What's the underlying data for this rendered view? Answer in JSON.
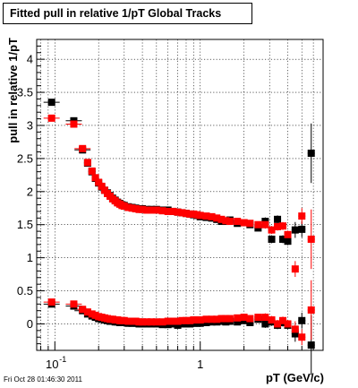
{
  "chart_data": {
    "type": "scatter",
    "title": "Fitted pull in relative 1/pT  Global Tracks",
    "xlabel": "pT (GeV/c)",
    "ylabel": "pull in relative 1/pT",
    "xscale": "log",
    "xlim": [
      0.075,
      7.0
    ],
    "ylim": [
      -0.4,
      4.3
    ],
    "grid": true,
    "legend": "none",
    "x_tick_labels": [
      {
        "value": 0.1,
        "base": "10",
        "exp": "-1"
      },
      {
        "value": 1,
        "label": "1"
      }
    ],
    "y_ticks": [
      0,
      0.5,
      1,
      1.5,
      2,
      2.5,
      3,
      3.5,
      4
    ],
    "y_tick_labels": [
      "0",
      "0.5",
      "1",
      "1.5",
      "2",
      "2.5",
      "3",
      "3.5",
      "4"
    ],
    "colors": {
      "black": "#000000",
      "red": "#ff0000"
    },
    "series": [
      {
        "color": "#000000",
        "marker": "square",
        "points": [
          {
            "x": 0.095,
            "y": 3.35
          },
          {
            "x": 0.135,
            "y": 3.07
          },
          {
            "x": 0.155,
            "y": 2.63
          },
          {
            "x": 0.168,
            "y": 2.43
          },
          {
            "x": 0.18,
            "y": 2.3
          },
          {
            "x": 0.19,
            "y": 2.2
          },
          {
            "x": 0.2,
            "y": 2.13
          },
          {
            "x": 0.21,
            "y": 2.07
          },
          {
            "x": 0.22,
            "y": 2.02
          },
          {
            "x": 0.23,
            "y": 1.98
          },
          {
            "x": 0.24,
            "y": 1.94
          },
          {
            "x": 0.25,
            "y": 1.9
          },
          {
            "x": 0.26,
            "y": 1.87
          },
          {
            "x": 0.27,
            "y": 1.84
          },
          {
            "x": 0.28,
            "y": 1.82
          },
          {
            "x": 0.29,
            "y": 1.8
          },
          {
            "x": 0.3,
            "y": 1.79
          },
          {
            "x": 0.32,
            "y": 1.77
          },
          {
            "x": 0.34,
            "y": 1.76
          },
          {
            "x": 0.36,
            "y": 1.75
          },
          {
            "x": 0.38,
            "y": 1.74
          },
          {
            "x": 0.4,
            "y": 1.74
          },
          {
            "x": 0.43,
            "y": 1.73
          },
          {
            "x": 0.46,
            "y": 1.73
          },
          {
            "x": 0.5,
            "y": 1.73
          },
          {
            "x": 0.55,
            "y": 1.72
          },
          {
            "x": 0.6,
            "y": 1.72
          },
          {
            "x": 0.65,
            "y": 1.7
          },
          {
            "x": 0.7,
            "y": 1.69
          },
          {
            "x": 0.75,
            "y": 1.68
          },
          {
            "x": 0.8,
            "y": 1.67
          },
          {
            "x": 0.85,
            "y": 1.66
          },
          {
            "x": 0.9,
            "y": 1.65
          },
          {
            "x": 0.95,
            "y": 1.64
          },
          {
            "x": 1.0,
            "y": 1.62
          },
          {
            "x": 1.1,
            "y": 1.61
          },
          {
            "x": 1.2,
            "y": 1.6
          },
          {
            "x": 1.3,
            "y": 1.58
          },
          {
            "x": 1.4,
            "y": 1.55
          },
          {
            "x": 1.5,
            "y": 1.55
          },
          {
            "x": 1.6,
            "y": 1.57
          },
          {
            "x": 1.8,
            "y": 1.52
          },
          {
            "x": 2.0,
            "y": 1.53
          },
          {
            "x": 2.2,
            "y": 1.5
          },
          {
            "x": 2.5,
            "y": 1.45
          },
          {
            "x": 2.8,
            "y": 1.55
          },
          {
            "x": 3.1,
            "y": 1.28
          },
          {
            "x": 3.4,
            "y": 1.58
          },
          {
            "x": 3.7,
            "y": 1.28
          },
          {
            "x": 4.0,
            "y": 1.25
          },
          {
            "x": 4.5,
            "y": 1.42
          },
          {
            "x": 5.0,
            "y": 1.43
          },
          {
            "x": 5.8,
            "y": 2.58
          },
          {
            "x": 0.095,
            "y": 0.3
          },
          {
            "x": 0.135,
            "y": 0.27
          },
          {
            "x": 0.155,
            "y": 0.2
          },
          {
            "x": 0.168,
            "y": 0.15
          },
          {
            "x": 0.18,
            "y": 0.12
          },
          {
            "x": 0.19,
            "y": 0.1
          },
          {
            "x": 0.2,
            "y": 0.08
          },
          {
            "x": 0.21,
            "y": 0.07
          },
          {
            "x": 0.22,
            "y": 0.06
          },
          {
            "x": 0.23,
            "y": 0.05
          },
          {
            "x": 0.24,
            "y": 0.04
          },
          {
            "x": 0.25,
            "y": 0.04
          },
          {
            "x": 0.26,
            "y": 0.03
          },
          {
            "x": 0.27,
            "y": 0.03
          },
          {
            "x": 0.28,
            "y": 0.02
          },
          {
            "x": 0.29,
            "y": 0.02
          },
          {
            "x": 0.3,
            "y": 0.02
          },
          {
            "x": 0.32,
            "y": 0.01
          },
          {
            "x": 0.34,
            "y": 0.01
          },
          {
            "x": 0.36,
            "y": 0.01
          },
          {
            "x": 0.38,
            "y": 0.0
          },
          {
            "x": 0.4,
            "y": 0.0
          },
          {
            "x": 0.43,
            "y": 0.0
          },
          {
            "x": 0.46,
            "y": 0.0
          },
          {
            "x": 0.5,
            "y": 0.0
          },
          {
            "x": 0.55,
            "y": -0.01
          },
          {
            "x": 0.6,
            "y": -0.01
          },
          {
            "x": 0.65,
            "y": 0.0
          },
          {
            "x": 0.7,
            "y": -0.02
          },
          {
            "x": 0.75,
            "y": 0.0
          },
          {
            "x": 0.8,
            "y": 0.0
          },
          {
            "x": 0.85,
            "y": 0.0
          },
          {
            "x": 0.9,
            "y": 0.01
          },
          {
            "x": 0.95,
            "y": 0.01
          },
          {
            "x": 1.0,
            "y": 0.01
          },
          {
            "x": 1.1,
            "y": 0.02
          },
          {
            "x": 1.2,
            "y": 0.03
          },
          {
            "x": 1.3,
            "y": 0.03
          },
          {
            "x": 1.4,
            "y": 0.04
          },
          {
            "x": 1.5,
            "y": 0.03
          },
          {
            "x": 1.6,
            "y": 0.04
          },
          {
            "x": 1.8,
            "y": 0.03
          },
          {
            "x": 2.0,
            "y": 0.05
          },
          {
            "x": 2.2,
            "y": 0.02
          },
          {
            "x": 2.5,
            "y": 0.07
          },
          {
            "x": 2.8,
            "y": 0.0
          },
          {
            "x": 3.1,
            "y": 0.03
          },
          {
            "x": 3.4,
            "y": -0.02
          },
          {
            "x": 3.7,
            "y": 0.02
          },
          {
            "x": 4.0,
            "y": -0.02
          },
          {
            "x": 4.5,
            "y": -0.15
          },
          {
            "x": 5.0,
            "y": 0.05
          },
          {
            "x": 5.8,
            "y": -0.32
          }
        ]
      },
      {
        "color": "#ff0000",
        "marker": "square",
        "points": [
          {
            "x": 0.095,
            "y": 3.11
          },
          {
            "x": 0.135,
            "y": 3.02
          },
          {
            "x": 0.155,
            "y": 2.65
          },
          {
            "x": 0.168,
            "y": 2.44
          },
          {
            "x": 0.18,
            "y": 2.31
          },
          {
            "x": 0.19,
            "y": 2.21
          },
          {
            "x": 0.2,
            "y": 2.14
          },
          {
            "x": 0.21,
            "y": 2.08
          },
          {
            "x": 0.22,
            "y": 2.02
          },
          {
            "x": 0.23,
            "y": 1.97
          },
          {
            "x": 0.24,
            "y": 1.93
          },
          {
            "x": 0.25,
            "y": 1.89
          },
          {
            "x": 0.26,
            "y": 1.86
          },
          {
            "x": 0.27,
            "y": 1.83
          },
          {
            "x": 0.28,
            "y": 1.81
          },
          {
            "x": 0.29,
            "y": 1.79
          },
          {
            "x": 0.3,
            "y": 1.78
          },
          {
            "x": 0.32,
            "y": 1.76
          },
          {
            "x": 0.34,
            "y": 1.75
          },
          {
            "x": 0.36,
            "y": 1.74
          },
          {
            "x": 0.38,
            "y": 1.73
          },
          {
            "x": 0.4,
            "y": 1.73
          },
          {
            "x": 0.43,
            "y": 1.72
          },
          {
            "x": 0.46,
            "y": 1.72
          },
          {
            "x": 0.5,
            "y": 1.72
          },
          {
            "x": 0.55,
            "y": 1.71
          },
          {
            "x": 0.6,
            "y": 1.7
          },
          {
            "x": 0.65,
            "y": 1.7
          },
          {
            "x": 0.7,
            "y": 1.69
          },
          {
            "x": 0.75,
            "y": 1.68
          },
          {
            "x": 0.8,
            "y": 1.67
          },
          {
            "x": 0.85,
            "y": 1.66
          },
          {
            "x": 0.9,
            "y": 1.66
          },
          {
            "x": 0.95,
            "y": 1.65
          },
          {
            "x": 1.0,
            "y": 1.64
          },
          {
            "x": 1.1,
            "y": 1.63
          },
          {
            "x": 1.2,
            "y": 1.62
          },
          {
            "x": 1.3,
            "y": 1.6
          },
          {
            "x": 1.4,
            "y": 1.58
          },
          {
            "x": 1.5,
            "y": 1.56
          },
          {
            "x": 1.6,
            "y": 1.55
          },
          {
            "x": 1.8,
            "y": 1.55
          },
          {
            "x": 2.0,
            "y": 1.53
          },
          {
            "x": 2.2,
            "y": 1.52
          },
          {
            "x": 2.5,
            "y": 1.5
          },
          {
            "x": 2.8,
            "y": 1.5
          },
          {
            "x": 3.1,
            "y": 1.42
          },
          {
            "x": 3.4,
            "y": 1.47
          },
          {
            "x": 3.7,
            "y": 1.48
          },
          {
            "x": 4.0,
            "y": 1.35
          },
          {
            "x": 4.5,
            "y": 0.83
          },
          {
            "x": 5.0,
            "y": 1.63
          },
          {
            "x": 5.8,
            "y": 1.28
          },
          {
            "x": 0.095,
            "y": 0.33
          },
          {
            "x": 0.135,
            "y": 0.3
          },
          {
            "x": 0.155,
            "y": 0.22
          },
          {
            "x": 0.168,
            "y": 0.18
          },
          {
            "x": 0.18,
            "y": 0.15
          },
          {
            "x": 0.19,
            "y": 0.13
          },
          {
            "x": 0.2,
            "y": 0.11
          },
          {
            "x": 0.21,
            "y": 0.1
          },
          {
            "x": 0.22,
            "y": 0.09
          },
          {
            "x": 0.23,
            "y": 0.08
          },
          {
            "x": 0.24,
            "y": 0.07
          },
          {
            "x": 0.25,
            "y": 0.07
          },
          {
            "x": 0.26,
            "y": 0.06
          },
          {
            "x": 0.27,
            "y": 0.06
          },
          {
            "x": 0.28,
            "y": 0.05
          },
          {
            "x": 0.29,
            "y": 0.05
          },
          {
            "x": 0.3,
            "y": 0.05
          },
          {
            "x": 0.32,
            "y": 0.04
          },
          {
            "x": 0.34,
            "y": 0.04
          },
          {
            "x": 0.36,
            "y": 0.04
          },
          {
            "x": 0.38,
            "y": 0.03
          },
          {
            "x": 0.4,
            "y": 0.03
          },
          {
            "x": 0.43,
            "y": 0.03
          },
          {
            "x": 0.46,
            "y": 0.03
          },
          {
            "x": 0.5,
            "y": 0.03
          },
          {
            "x": 0.55,
            "y": 0.03
          },
          {
            "x": 0.6,
            "y": 0.04
          },
          {
            "x": 0.65,
            "y": 0.04
          },
          {
            "x": 0.7,
            "y": 0.04
          },
          {
            "x": 0.75,
            "y": 0.05
          },
          {
            "x": 0.8,
            "y": 0.05
          },
          {
            "x": 0.85,
            "y": 0.05
          },
          {
            "x": 0.9,
            "y": 0.06
          },
          {
            "x": 0.95,
            "y": 0.06
          },
          {
            "x": 1.0,
            "y": 0.06
          },
          {
            "x": 1.1,
            "y": 0.07
          },
          {
            "x": 1.2,
            "y": 0.07
          },
          {
            "x": 1.3,
            "y": 0.07
          },
          {
            "x": 1.4,
            "y": 0.08
          },
          {
            "x": 1.5,
            "y": 0.08
          },
          {
            "x": 1.6,
            "y": 0.08
          },
          {
            "x": 1.8,
            "y": 0.09
          },
          {
            "x": 2.0,
            "y": 0.1
          },
          {
            "x": 2.2,
            "y": 0.08
          },
          {
            "x": 2.5,
            "y": 0.1
          },
          {
            "x": 2.8,
            "y": 0.1
          },
          {
            "x": 3.1,
            "y": 0.06
          },
          {
            "x": 3.4,
            "y": 0.0
          },
          {
            "x": 3.7,
            "y": 0.05
          },
          {
            "x": 4.0,
            "y": 0.0
          },
          {
            "x": 4.5,
            "y": -0.08
          },
          {
            "x": 5.0,
            "y": -0.2
          },
          {
            "x": 5.8,
            "y": 0.21
          }
        ]
      }
    ]
  },
  "footer_timestamp": "Fri Oct 28 01:46:30 2011"
}
